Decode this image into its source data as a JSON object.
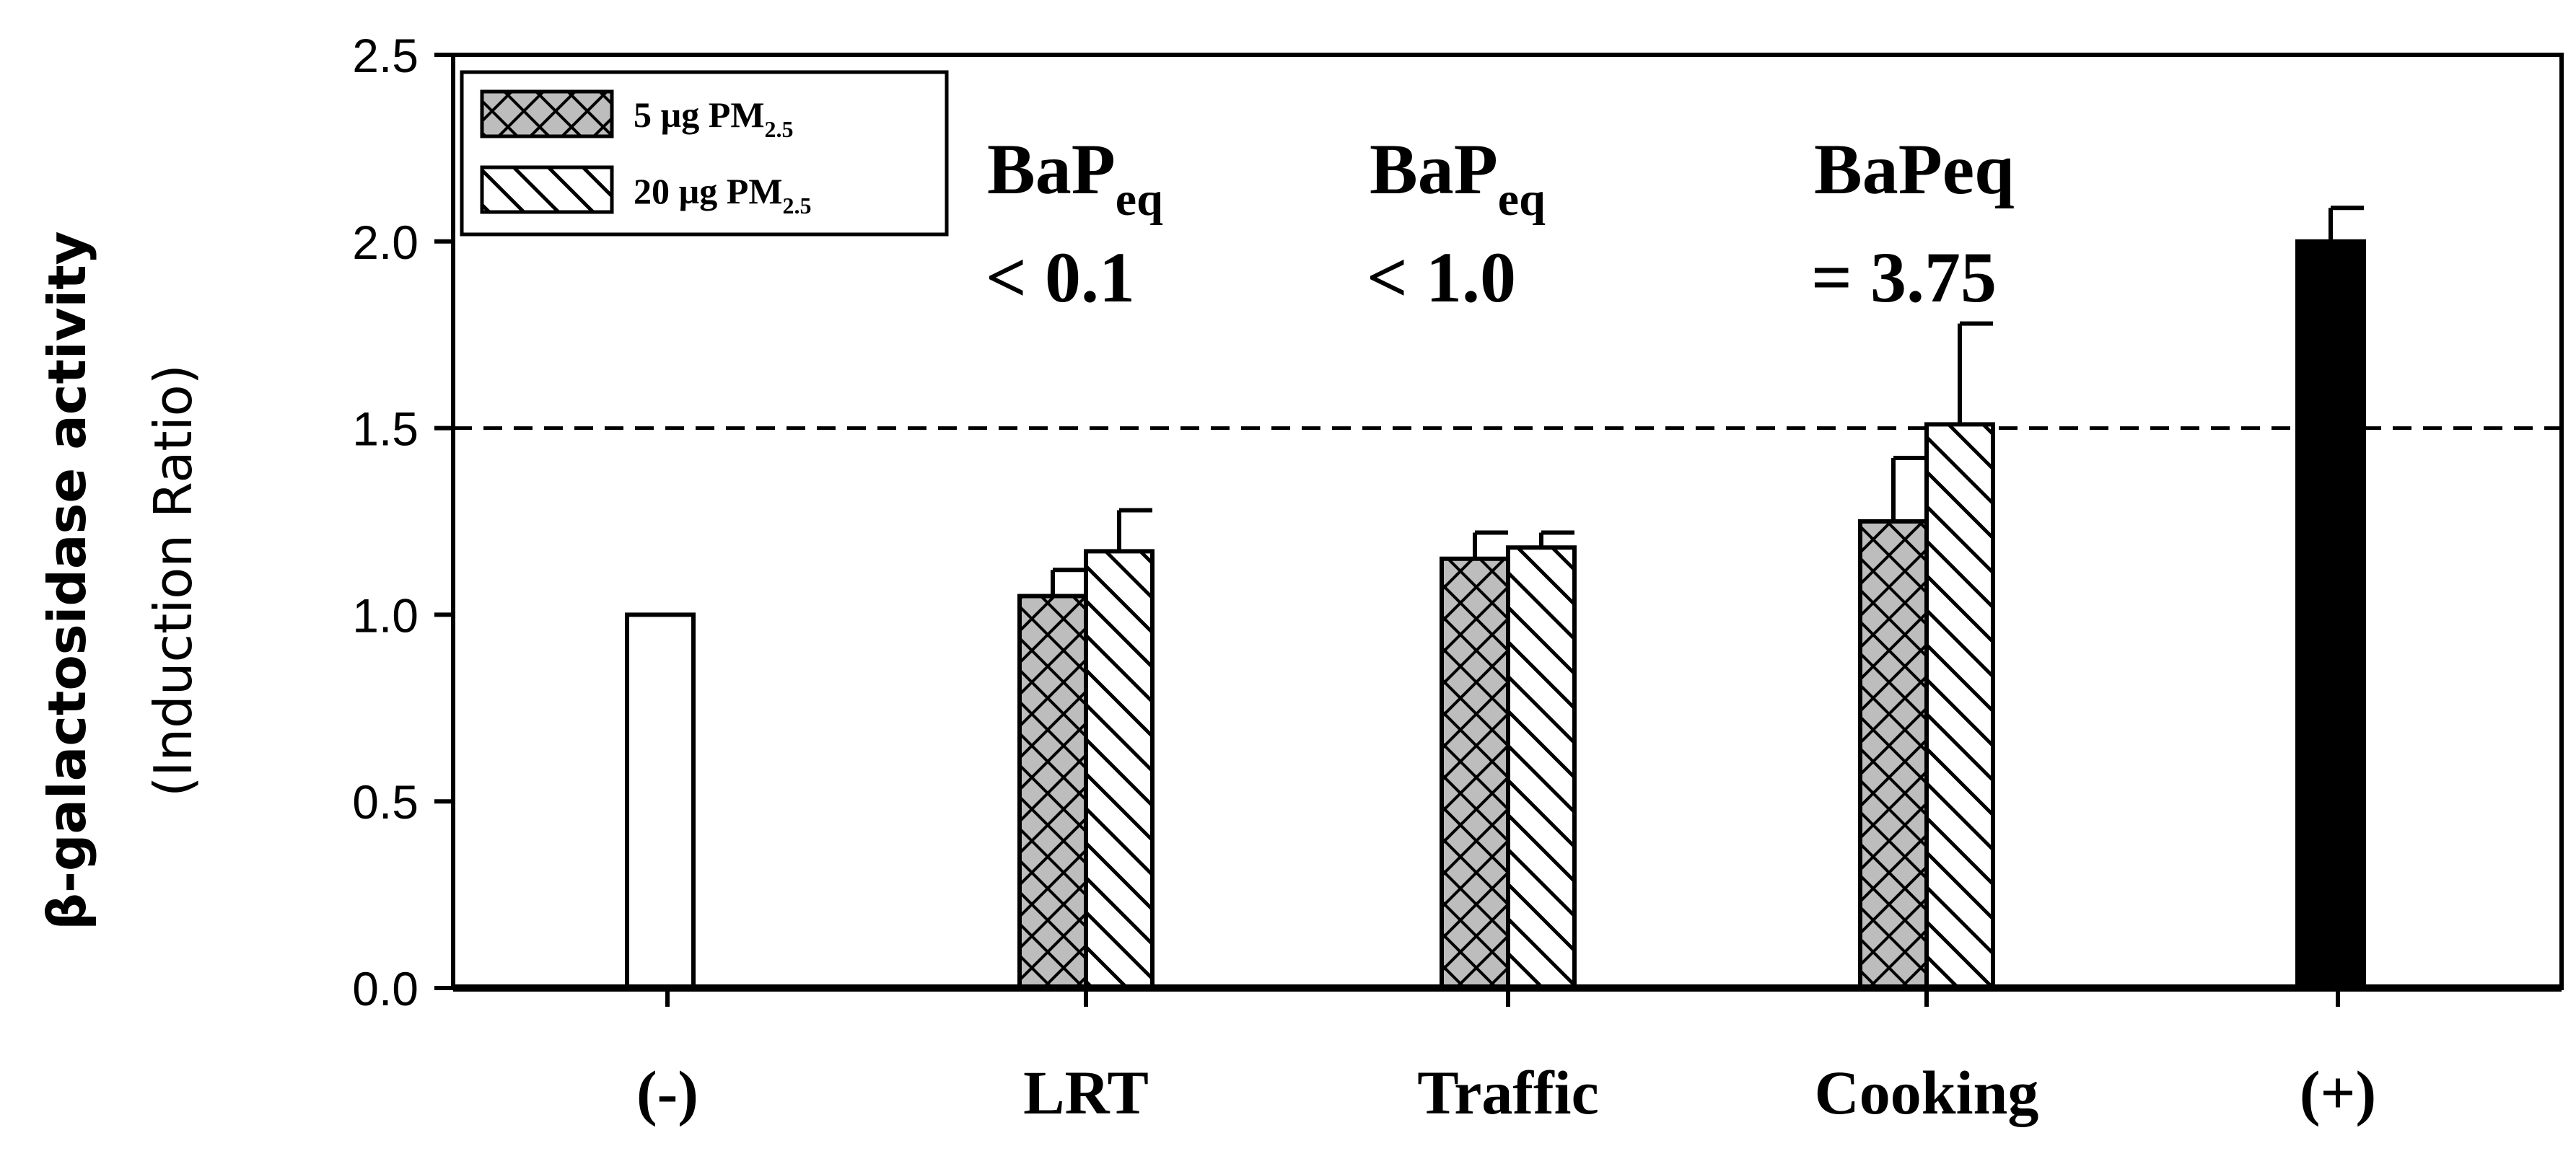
{
  "chart_data": {
    "type": "bar",
    "title": "",
    "xlabel": "",
    "ylabel_line1": "β-galactosidase activity",
    "ylabel_line2": "(Induction Ratio)",
    "ylim": [
      0,
      2.5
    ],
    "yticks": [
      "0.0",
      "0.5",
      "1.0",
      "1.5",
      "2.0",
      "2.5"
    ],
    "threshold": 1.5,
    "categories": [
      "(-)",
      "LRT",
      "Traffic",
      "Cooking",
      "(+)"
    ],
    "series": [
      {
        "name": "5 µg PM2.5",
        "name_main": "5 µg PM",
        "name_sub": "2.5",
        "pattern": "crosshatch",
        "values": [
          null,
          1.05,
          1.15,
          1.25,
          null
        ],
        "errors": [
          null,
          0.07,
          0.07,
          0.17,
          null
        ]
      },
      {
        "name": "20 µg PM2.5",
        "name_main": "20 µg PM",
        "name_sub": "2.5",
        "pattern": "diagonal",
        "values": [
          null,
          1.17,
          1.18,
          1.51,
          null
        ],
        "errors": [
          null,
          0.11,
          0.04,
          0.27,
          null
        ]
      }
    ],
    "controls": [
      {
        "category": "(-)",
        "value": 1.0,
        "error": 0,
        "fill": "white"
      },
      {
        "category": "(+)",
        "value": 2.0,
        "error": 0.09,
        "fill": "black"
      }
    ],
    "annotations": [
      {
        "category": "LRT",
        "main": "BaP",
        "sub": "eq",
        "line2": "< 0.1"
      },
      {
        "category": "Traffic",
        "main": "BaP",
        "sub": "eq",
        "line2": "< 1.0"
      },
      {
        "category": "Cooking",
        "main": "BaPeq",
        "sub": "",
        "line2": "= 3.75"
      }
    ],
    "legend_position": "top-left"
  },
  "colors": {
    "hatch_fill": "#bdbdbd",
    "bar_fill": "#ffffff",
    "positive_fill": "#000000",
    "ink": "#000000"
  }
}
